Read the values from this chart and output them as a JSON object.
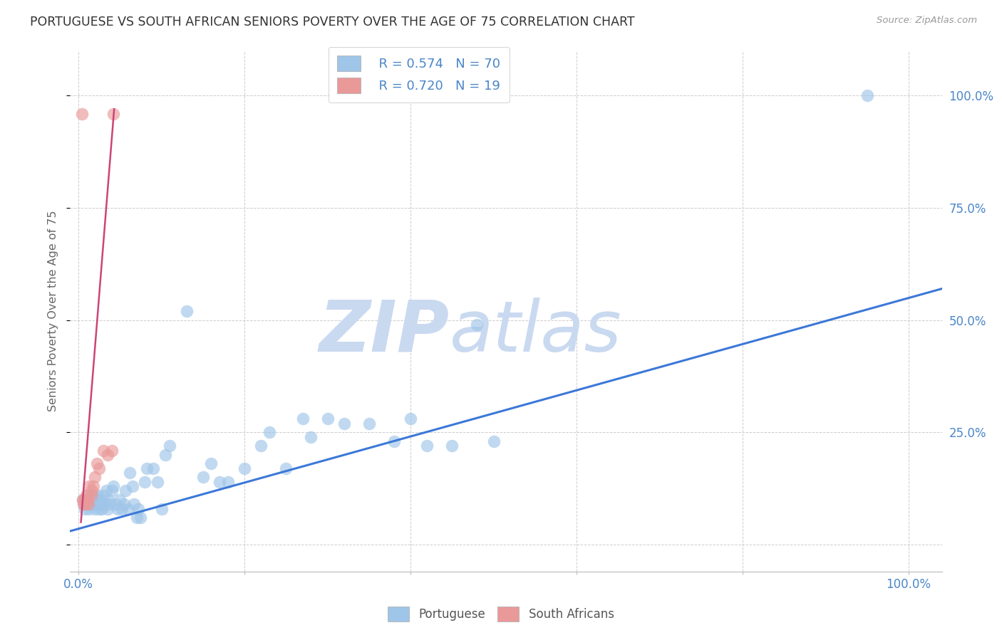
{
  "title": "PORTUGUESE VS SOUTH AFRICAN SENIORS POVERTY OVER THE AGE OF 75 CORRELATION CHART",
  "source": "Source: ZipAtlas.com",
  "ylabel_label": "Seniors Poverty Over the Age of 75",
  "x_ticks": [
    0.0,
    0.2,
    0.4,
    0.6,
    0.8,
    1.0
  ],
  "y_ticks": [
    0.0,
    0.25,
    0.5,
    0.75,
    1.0
  ],
  "y_tick_labels_right": [
    "",
    "25.0%",
    "50.0%",
    "75.0%",
    "100.0%"
  ],
  "xlim": [
    -0.01,
    1.04
  ],
  "ylim": [
    -0.06,
    1.1
  ],
  "legend_blue_r": "R = 0.574",
  "legend_blue_n": "N = 70",
  "legend_pink_r": "R = 0.720",
  "legend_pink_n": "N = 19",
  "blue_color": "#9fc5e8",
  "pink_color": "#ea9999",
  "blue_line_color": "#3c78d8",
  "pink_line_color": "#cc4477",
  "blue_scatter": [
    [
      0.005,
      0.1
    ],
    [
      0.007,
      0.09
    ],
    [
      0.008,
      0.08
    ],
    [
      0.01,
      0.1
    ],
    [
      0.011,
      0.09
    ],
    [
      0.012,
      0.11
    ],
    [
      0.013,
      0.08
    ],
    [
      0.015,
      0.1
    ],
    [
      0.016,
      0.09
    ],
    [
      0.017,
      0.11
    ],
    [
      0.018,
      0.1
    ],
    [
      0.019,
      0.09
    ],
    [
      0.02,
      0.08
    ],
    [
      0.021,
      0.09
    ],
    [
      0.022,
      0.1
    ],
    [
      0.023,
      0.11
    ],
    [
      0.024,
      0.09
    ],
    [
      0.025,
      0.08
    ],
    [
      0.026,
      0.1
    ],
    [
      0.027,
      0.09
    ],
    [
      0.028,
      0.08
    ],
    [
      0.03,
      0.11
    ],
    [
      0.032,
      0.09
    ],
    [
      0.033,
      0.12
    ],
    [
      0.035,
      0.08
    ],
    [
      0.036,
      0.1
    ],
    [
      0.038,
      0.09
    ],
    [
      0.04,
      0.12
    ],
    [
      0.042,
      0.13
    ],
    [
      0.045,
      0.09
    ],
    [
      0.047,
      0.08
    ],
    [
      0.05,
      0.1
    ],
    [
      0.052,
      0.08
    ],
    [
      0.055,
      0.09
    ],
    [
      0.057,
      0.12
    ],
    [
      0.06,
      0.08
    ],
    [
      0.062,
      0.16
    ],
    [
      0.065,
      0.13
    ],
    [
      0.067,
      0.09
    ],
    [
      0.07,
      0.06
    ],
    [
      0.072,
      0.08
    ],
    [
      0.075,
      0.06
    ],
    [
      0.08,
      0.14
    ],
    [
      0.082,
      0.17
    ],
    [
      0.09,
      0.17
    ],
    [
      0.095,
      0.14
    ],
    [
      0.1,
      0.08
    ],
    [
      0.105,
      0.2
    ],
    [
      0.11,
      0.22
    ],
    [
      0.13,
      0.52
    ],
    [
      0.15,
      0.15
    ],
    [
      0.16,
      0.18
    ],
    [
      0.17,
      0.14
    ],
    [
      0.18,
      0.14
    ],
    [
      0.2,
      0.17
    ],
    [
      0.22,
      0.22
    ],
    [
      0.23,
      0.25
    ],
    [
      0.25,
      0.17
    ],
    [
      0.27,
      0.28
    ],
    [
      0.28,
      0.24
    ],
    [
      0.3,
      0.28
    ],
    [
      0.32,
      0.27
    ],
    [
      0.35,
      0.27
    ],
    [
      0.38,
      0.23
    ],
    [
      0.4,
      0.28
    ],
    [
      0.42,
      0.22
    ],
    [
      0.45,
      0.22
    ],
    [
      0.48,
      0.49
    ],
    [
      0.5,
      0.23
    ],
    [
      0.95,
      1.0
    ]
  ],
  "pink_scatter": [
    [
      0.005,
      0.1
    ],
    [
      0.006,
      0.09
    ],
    [
      0.007,
      0.1
    ],
    [
      0.008,
      0.09
    ],
    [
      0.009,
      0.11
    ],
    [
      0.01,
      0.1
    ],
    [
      0.012,
      0.09
    ],
    [
      0.013,
      0.13
    ],
    [
      0.015,
      0.11
    ],
    [
      0.016,
      0.12
    ],
    [
      0.018,
      0.13
    ],
    [
      0.02,
      0.15
    ],
    [
      0.022,
      0.18
    ],
    [
      0.025,
      0.17
    ],
    [
      0.03,
      0.21
    ],
    [
      0.035,
      0.2
    ],
    [
      0.04,
      0.21
    ],
    [
      0.004,
      0.96
    ],
    [
      0.042,
      0.96
    ]
  ],
  "blue_trendline_x": [
    -0.01,
    1.04
  ],
  "blue_trendline_y": [
    0.03,
    0.57
  ],
  "pink_trendline_x": [
    0.003,
    0.043
  ],
  "pink_trendline_y": [
    0.05,
    0.97
  ],
  "bg_color": "#ffffff",
  "grid_color": "#cccccc",
  "title_color": "#333333",
  "axis_label_color": "#666666",
  "tick_color_blue": "#4a86c8",
  "legend_text_color": "#4a86c8",
  "watermark_color": "#c9d9f0",
  "watermark_alpha": 0.55
}
